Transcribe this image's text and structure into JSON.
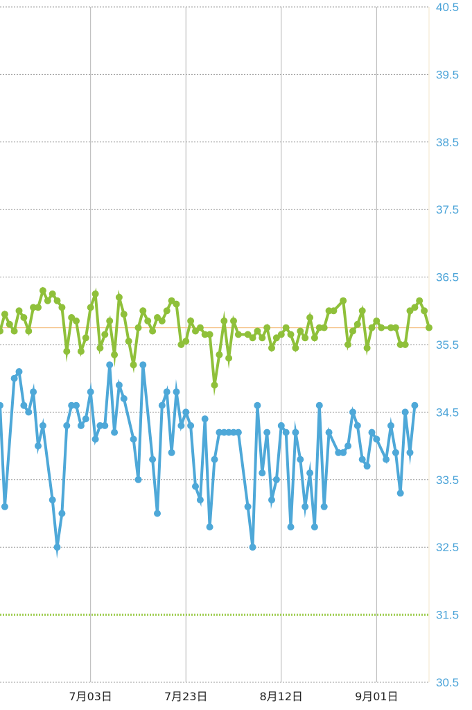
{
  "chart_data": {
    "type": "line",
    "title": "",
    "xlabel": "",
    "ylabel": "",
    "x_range": [
      "2025-06-14",
      "2025-09-12"
    ],
    "ylim": [
      30.5,
      40.5
    ],
    "yticks": [
      "40.5",
      "39.5",
      "38.5",
      "37.5",
      "36.5",
      "35.5",
      "34.5",
      "33.5",
      "32.5",
      "31.5",
      "30.5"
    ],
    "xticks": [
      {
        "date": "2025-07-03",
        "label": "7月03日"
      },
      {
        "date": "2025-07-23",
        "label": "7月23日"
      },
      {
        "date": "2025-08-12",
        "label": "8月12日"
      },
      {
        "date": "2025-09-01",
        "label": "9月01日"
      }
    ],
    "grid": true,
    "reference_lines": [
      {
        "y": 35.75,
        "color": "#f5c48a",
        "style": "solid"
      },
      {
        "y": 31.5,
        "color": "#9ccc4c",
        "style": "dotted"
      }
    ],
    "series": [
      {
        "color": "#8fc03a",
        "values": [
          35.7,
          35.95,
          35.8,
          35.7,
          36.0,
          35.9,
          35.7,
          36.05,
          36.05,
          36.3,
          36.15,
          36.25,
          36.15,
          36.05,
          35.4,
          35.9,
          35.85,
          35.4,
          35.6,
          36.05,
          36.25,
          35.45,
          35.65,
          35.85,
          35.35,
          36.2,
          35.95,
          35.55,
          35.2,
          35.75,
          36.0,
          35.85,
          35.7,
          35.9,
          35.85,
          36.0,
          36.15,
          36.1,
          35.5,
          35.55,
          35.85,
          35.7,
          35.75,
          35.65,
          35.65,
          34.9,
          35.35,
          35.85,
          35.3,
          35.85,
          35.65,
          35.65,
          35.6,
          35.7,
          35.6,
          35.75,
          35.45,
          35.6,
          35.65,
          35.75,
          35.65,
          35.45,
          35.7,
          35.6,
          35.9,
          35.6,
          35.75,
          35.75,
          36.0,
          36.0,
          36.15,
          35.5,
          35.7,
          35.8,
          36.0,
          35.45,
          35.75,
          35.85,
          35.75,
          35.75,
          35.75,
          35.5,
          35.5,
          36.0,
          36.05,
          36.15,
          36.0,
          35.75
        ],
        "x_days": [
          0,
          1,
          2,
          3,
          4,
          5,
          6,
          7,
          8,
          9,
          10,
          11,
          12,
          13,
          14,
          15,
          16,
          17,
          18,
          19,
          20,
          21,
          22,
          23,
          24,
          25,
          26,
          27,
          28,
          29,
          30,
          31,
          32,
          33,
          34,
          35,
          36,
          37,
          38,
          39,
          40,
          41,
          42,
          43,
          44,
          45,
          46,
          47,
          48,
          49,
          50,
          52,
          53,
          54,
          55,
          56,
          57,
          58,
          59,
          60,
          61,
          62,
          63,
          64,
          65,
          66,
          67,
          68,
          69,
          70,
          72,
          73,
          74,
          75,
          76,
          77,
          78,
          79,
          80,
          82,
          83,
          84,
          85,
          86,
          87,
          88,
          89,
          90
        ]
      },
      {
        "color": "#4ea8d8",
        "values": [
          34.6,
          33.1,
          35.0,
          35.1,
          34.6,
          34.5,
          34.8,
          34.0,
          34.3,
          33.2,
          32.5,
          33.0,
          34.3,
          34.6,
          34.6,
          34.3,
          34.4,
          34.8,
          34.1,
          34.3,
          34.3,
          35.2,
          34.2,
          34.9,
          34.7,
          34.1,
          33.5,
          35.2,
          33.8,
          33.0,
          34.6,
          34.8,
          33.9,
          34.8,
          34.3,
          34.5,
          34.3,
          33.4,
          33.2,
          34.4,
          32.8,
          33.8,
          34.2,
          34.2,
          34.2,
          34.2,
          34.2,
          33.1,
          32.5,
          34.6,
          33.6,
          34.2,
          33.2,
          33.5,
          34.3,
          34.2,
          32.8,
          34.2,
          33.8,
          33.1,
          33.6,
          32.8,
          34.6,
          33.1,
          34.2,
          33.9,
          33.9,
          34.0,
          34.5,
          34.3,
          33.8,
          33.7,
          34.2,
          34.1,
          33.8,
          34.3,
          33.9,
          33.3,
          34.5,
          33.9,
          34.6
        ],
        "x_days": [
          0,
          1,
          3,
          4,
          5,
          6,
          7,
          8,
          9,
          11,
          12,
          13,
          14,
          15,
          16,
          17,
          18,
          19,
          20,
          21,
          22,
          23,
          24,
          25,
          26,
          28,
          29,
          30,
          32,
          33,
          34,
          35,
          36,
          37,
          38,
          39,
          40,
          41,
          42,
          43,
          44,
          45,
          46,
          47,
          48,
          49,
          50,
          52,
          53,
          54,
          55,
          56,
          57,
          58,
          59,
          60,
          61,
          62,
          63,
          64,
          65,
          66,
          67,
          68,
          69,
          71,
          72,
          73,
          74,
          75,
          76,
          77,
          78,
          79,
          81,
          82,
          83,
          84,
          85,
          86,
          87
        ]
      }
    ]
  }
}
